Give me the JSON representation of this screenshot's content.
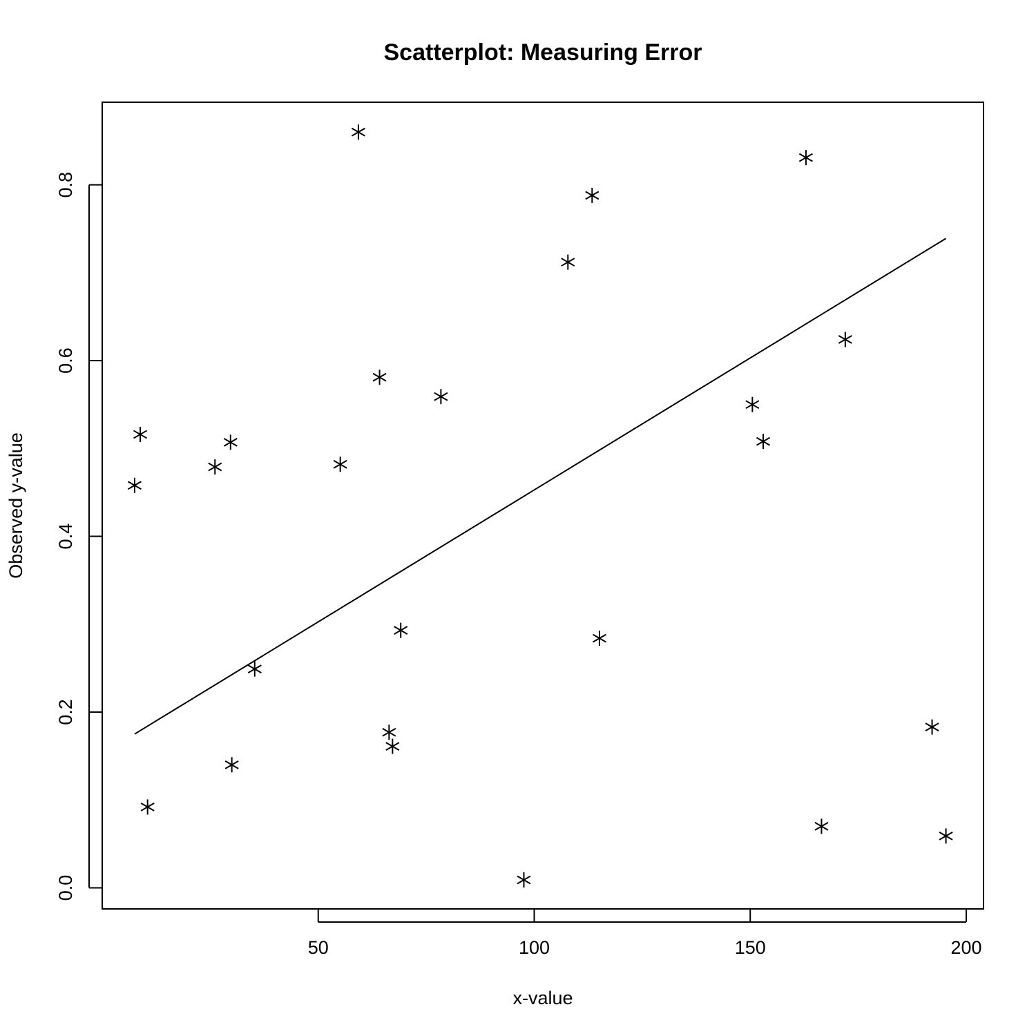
{
  "chart_data": {
    "type": "scatter",
    "title": "Scatterplot: Measuring Error",
    "xlabel": "x-value",
    "ylabel": "Observed y-value",
    "xlim": [
      0,
      204
    ],
    "ylim": [
      -0.024,
      0.894
    ],
    "x_ticks": [
      50,
      100,
      150,
      200
    ],
    "y_ticks": [
      0.0,
      0.2,
      0.4,
      0.6,
      0.8
    ],
    "x_tick_labels": [
      "50",
      "100",
      "150",
      "200"
    ],
    "y_tick_labels": [
      "0.0",
      "0.2",
      "0.4",
      "0.6",
      "0.8"
    ],
    "grid": false,
    "marker": "asterisk",
    "points": [
      {
        "x": 7.5,
        "y": 0.458
      },
      {
        "x": 8.8,
        "y": 0.516
      },
      {
        "x": 10.5,
        "y": 0.092
      },
      {
        "x": 26.1,
        "y": 0.479
      },
      {
        "x": 29.7,
        "y": 0.507
      },
      {
        "x": 30.0,
        "y": 0.14
      },
      {
        "x": 35.3,
        "y": 0.249
      },
      {
        "x": 55.1,
        "y": 0.482
      },
      {
        "x": 59.3,
        "y": 0.86
      },
      {
        "x": 64.2,
        "y": 0.581
      },
      {
        "x": 66.4,
        "y": 0.177
      },
      {
        "x": 67.2,
        "y": 0.161
      },
      {
        "x": 69.1,
        "y": 0.293
      },
      {
        "x": 78.4,
        "y": 0.559
      },
      {
        "x": 97.6,
        "y": 0.009
      },
      {
        "x": 107.8,
        "y": 0.712
      },
      {
        "x": 113.4,
        "y": 0.788
      },
      {
        "x": 115.1,
        "y": 0.284
      },
      {
        "x": 150.5,
        "y": 0.55
      },
      {
        "x": 153.0,
        "y": 0.508
      },
      {
        "x": 162.9,
        "y": 0.831
      },
      {
        "x": 166.5,
        "y": 0.07
      },
      {
        "x": 172.0,
        "y": 0.624
      },
      {
        "x": 192.1,
        "y": 0.183
      },
      {
        "x": 195.3,
        "y": 0.059
      }
    ],
    "fit_line": {
      "x": [
        7.5,
        195.3
      ],
      "y": [
        0.175,
        0.739
      ]
    }
  }
}
